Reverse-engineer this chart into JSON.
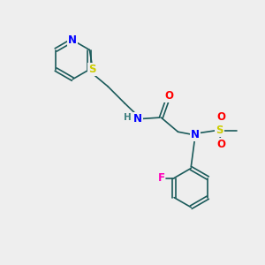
{
  "bg_color": "#eeeeee",
  "atom_colors": {
    "N": "#0000ff",
    "O": "#ff0000",
    "S": "#cccc00",
    "F": "#ff00bb",
    "H_label": "#408080",
    "C": "#1a5a5a"
  },
  "font_size_atoms": 8.5,
  "fig_width": 3.0,
  "fig_height": 3.0,
  "dpi": 100
}
